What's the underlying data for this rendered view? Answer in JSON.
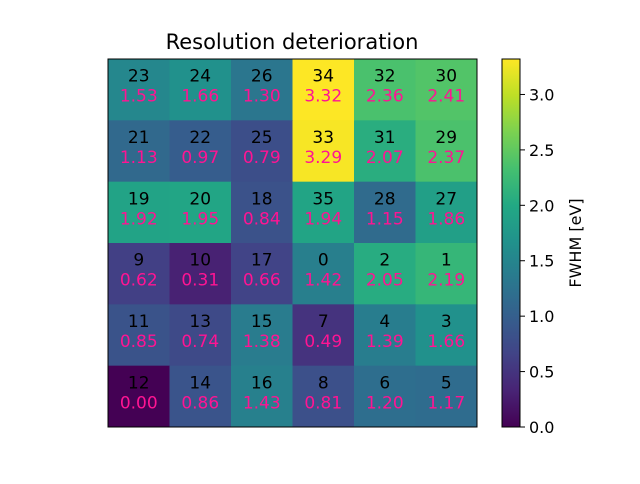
{
  "chart_data": {
    "type": "heatmap",
    "title": "Resolution deterioration",
    "colorbar": {
      "label": "FWHM [eV]",
      "range": [
        0.0,
        3.32
      ],
      "ticks": [
        "0.0",
        "0.5",
        "1.0",
        "1.5",
        "2.0",
        "2.5",
        "3.0"
      ],
      "colormap": "viridis"
    },
    "value_label_color": "#ff1493",
    "id_label_color": "#000000",
    "cells": [
      [
        {
          "id": "23",
          "value": "1.53"
        },
        {
          "id": "24",
          "value": "1.66"
        },
        {
          "id": "26",
          "value": "1.30"
        },
        {
          "id": "34",
          "value": "3.32"
        },
        {
          "id": "32",
          "value": "2.36"
        },
        {
          "id": "30",
          "value": "2.41"
        }
      ],
      [
        {
          "id": "21",
          "value": "1.13"
        },
        {
          "id": "22",
          "value": "0.97"
        },
        {
          "id": "25",
          "value": "0.79"
        },
        {
          "id": "33",
          "value": "3.29"
        },
        {
          "id": "31",
          "value": "2.07"
        },
        {
          "id": "29",
          "value": "2.37"
        }
      ],
      [
        {
          "id": "19",
          "value": "1.92"
        },
        {
          "id": "20",
          "value": "1.95"
        },
        {
          "id": "18",
          "value": "0.84"
        },
        {
          "id": "35",
          "value": "1.94"
        },
        {
          "id": "28",
          "value": "1.15"
        },
        {
          "id": "27",
          "value": "1.86"
        }
      ],
      [
        {
          "id": "9",
          "value": "0.62"
        },
        {
          "id": "10",
          "value": "0.31"
        },
        {
          "id": "17",
          "value": "0.66"
        },
        {
          "id": "0",
          "value": "1.42"
        },
        {
          "id": "2",
          "value": "2.05"
        },
        {
          "id": "1",
          "value": "2.19"
        }
      ],
      [
        {
          "id": "11",
          "value": "0.85"
        },
        {
          "id": "13",
          "value": "0.74"
        },
        {
          "id": "15",
          "value": "1.38"
        },
        {
          "id": "7",
          "value": "0.49"
        },
        {
          "id": "4",
          "value": "1.39"
        },
        {
          "id": "3",
          "value": "1.66"
        }
      ],
      [
        {
          "id": "12",
          "value": "0.00"
        },
        {
          "id": "14",
          "value": "0.86"
        },
        {
          "id": "16",
          "value": "1.43"
        },
        {
          "id": "8",
          "value": "0.81"
        },
        {
          "id": "6",
          "value": "1.20"
        },
        {
          "id": "5",
          "value": "1.17"
        }
      ]
    ]
  }
}
